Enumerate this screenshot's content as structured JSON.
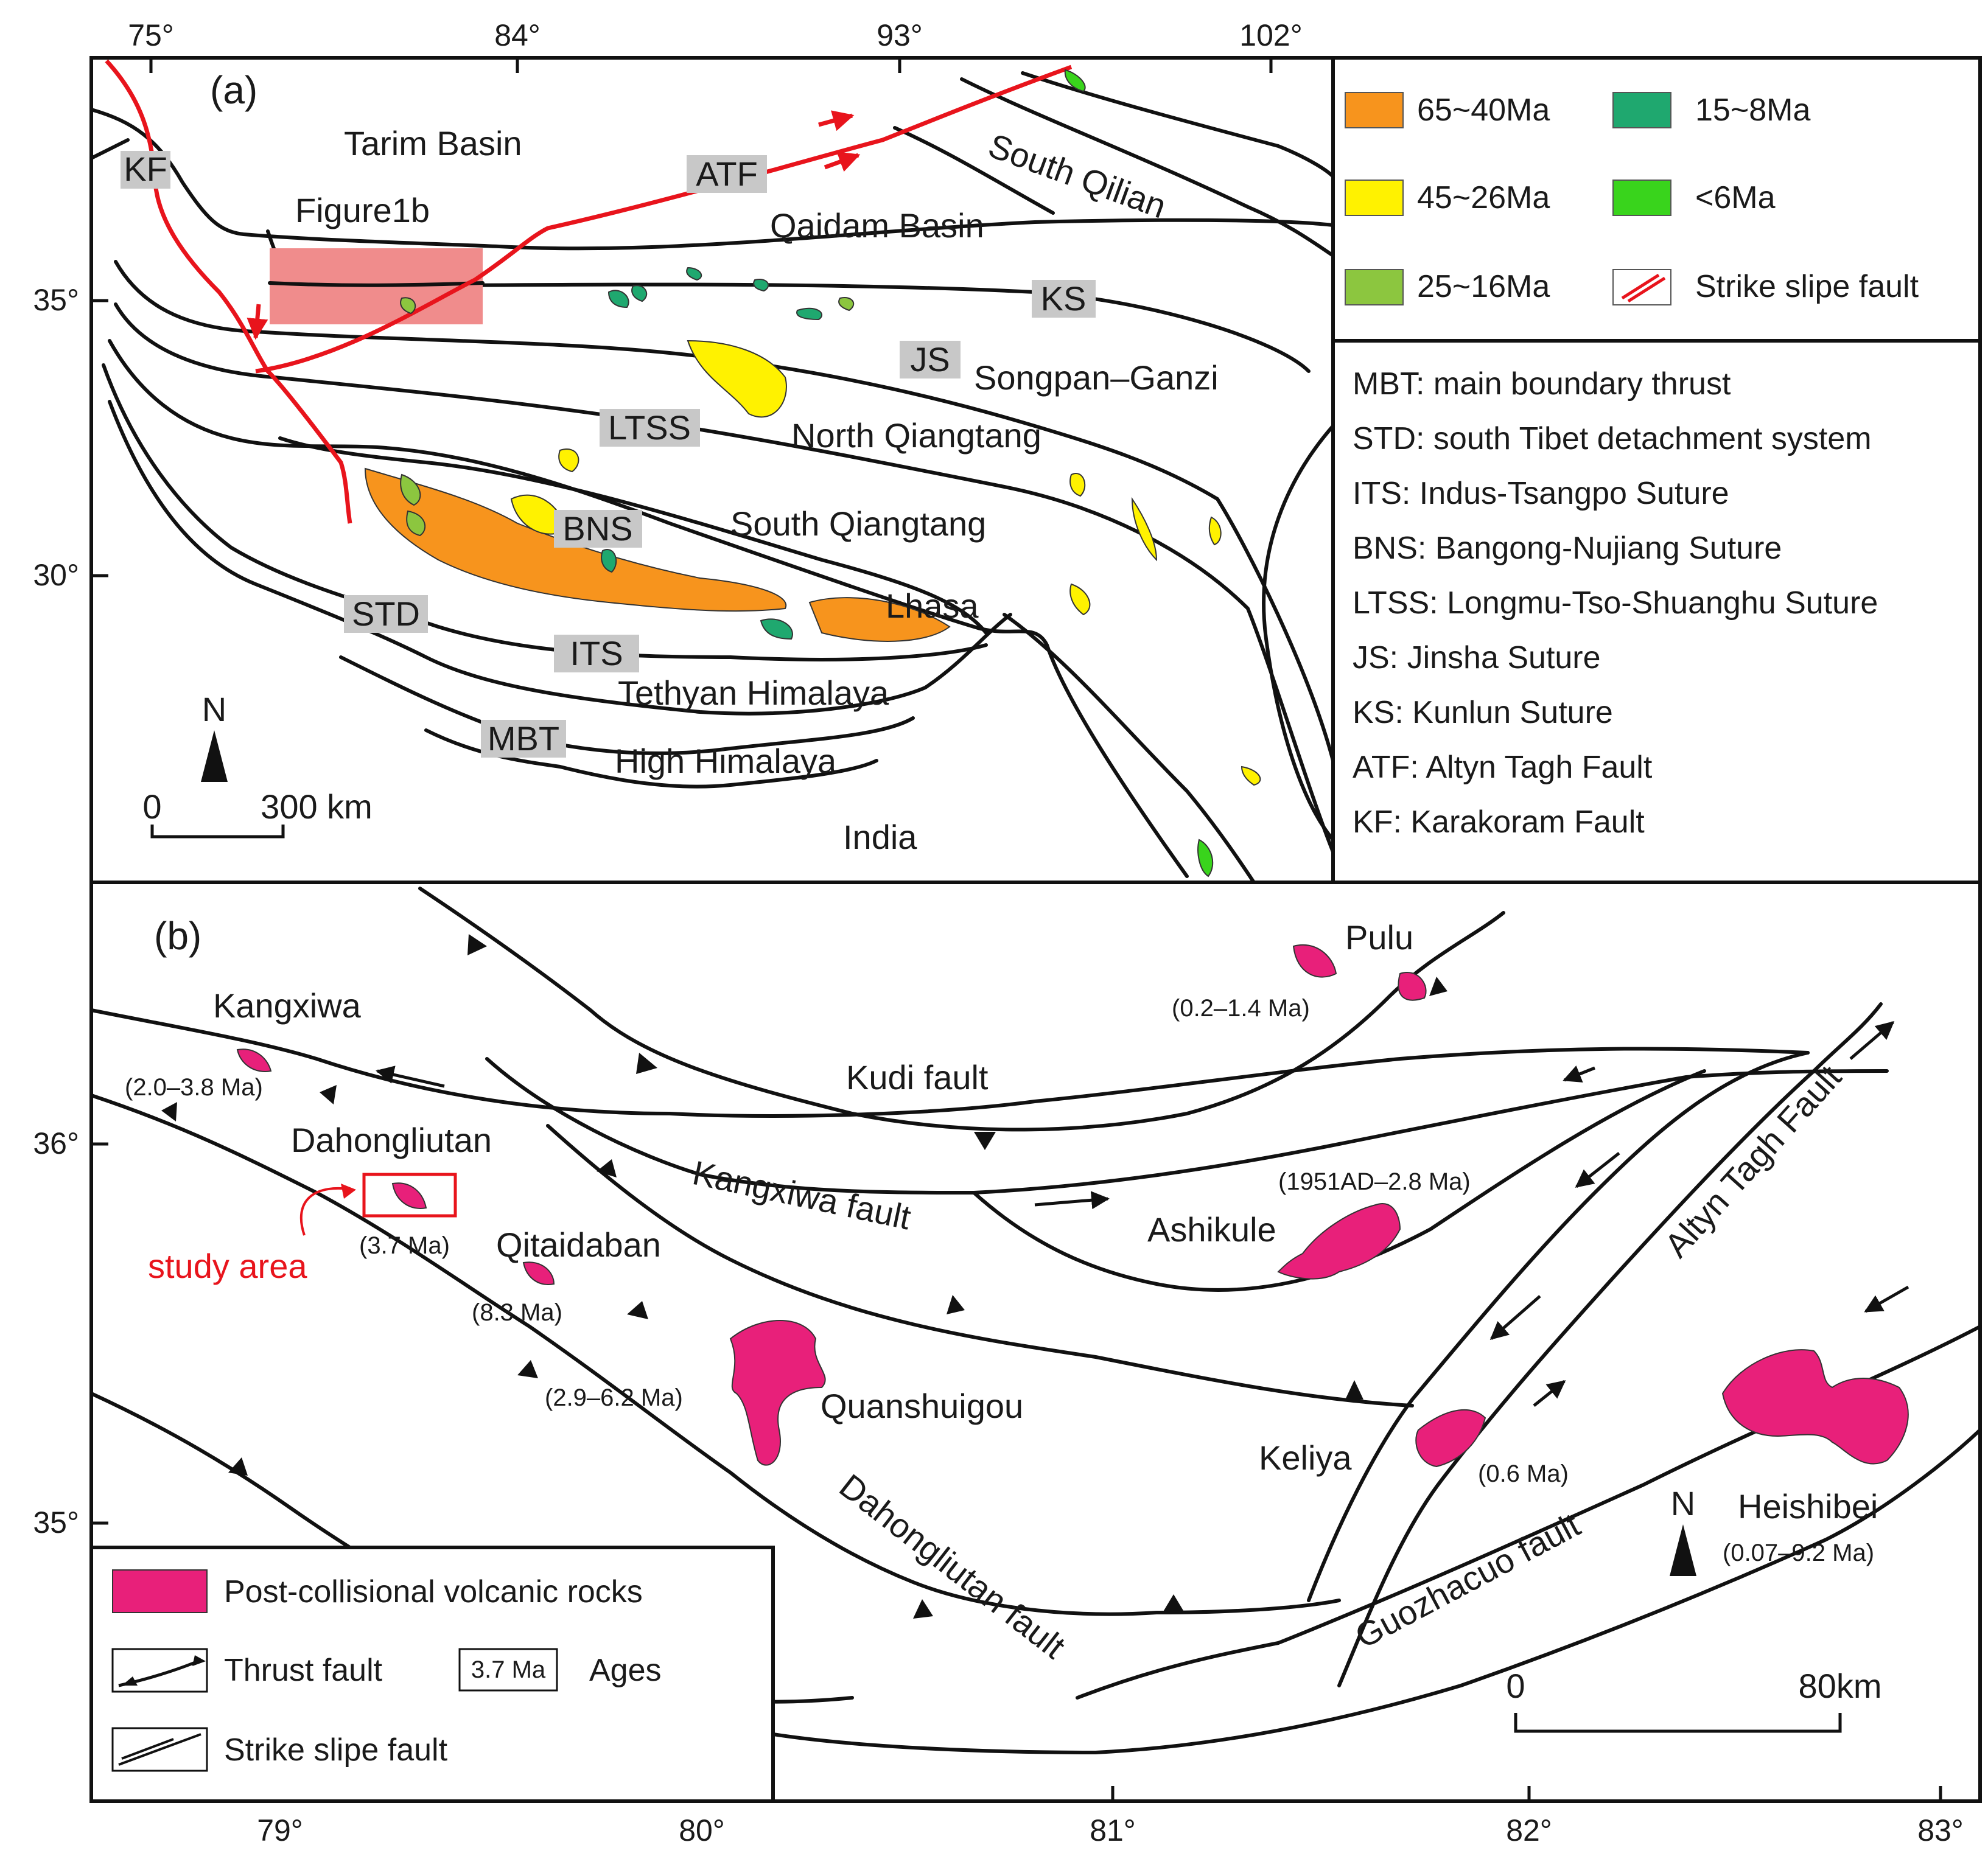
{
  "panel_a": {
    "label": "(a)",
    "lon_ticks": [
      "75°",
      "84°",
      "93°",
      "102°"
    ],
    "lat_ticks": [
      "35°",
      "30°"
    ],
    "places": {
      "tarim": "Tarim Basin",
      "qaidam": "Qaidam Basin",
      "south_qilian": "South Qilian",
      "songpan": "Songpan–Ganzi",
      "north_qiangtang": "North Qiangtang",
      "south_qiangtang": "South Qiangtang",
      "lhasa": "Lhasa",
      "tethyan": "Tethyan Himalaya",
      "high_himalaya": "High Himalaya",
      "india": "India",
      "figure1b": "Figure1b"
    },
    "badges": {
      "kf": "KF",
      "atf": "ATF",
      "ks": "KS",
      "js": "JS",
      "ltss": "LTSS",
      "bns": "BNS",
      "std": "STD",
      "its": "ITS",
      "mbt": "MBT"
    },
    "north": "N",
    "scale": {
      "zero": "0",
      "label": "300 km"
    },
    "legend_ages": [
      {
        "label": "65~40Ma",
        "color": "#f7941d"
      },
      {
        "label": "15~8Ma",
        "color": "#1fa86f"
      },
      {
        "label": "45~26Ma",
        "color": "#fff200"
      },
      {
        "label": "<6Ma",
        "color": "#39d41c"
      },
      {
        "label": "25~16Ma",
        "color": "#8cc63f"
      },
      {
        "label": "Strike slipe fault",
        "color": "#e8141c"
      }
    ],
    "abbreviations": [
      "MBT: main boundary thrust",
      "STD: south Tibet detachment system",
      "ITS: Indus-Tsangpo Suture",
      "BNS: Bangong-Nujiang Suture",
      "LTSS: Longmu-Tso-Shuanghu Suture",
      "JS: Jinsha Suture",
      "KS: Kunlun Suture",
      "ATF: Altyn Tagh Fault",
      "KF: Karakoram Fault"
    ]
  },
  "panel_b": {
    "label": "(b)",
    "lon_ticks": [
      "79°",
      "80°",
      "81°",
      "82°",
      "83°"
    ],
    "lat_ticks": [
      "36°",
      "35°"
    ],
    "volcanic_color": "#e8207a",
    "faults": {
      "kudi": "Kudi fault",
      "kangxiwa": "Kangxiwa fault",
      "altyn": "Altyn Tagh Fault",
      "dahongliutan": "Dahongliutan fault",
      "guozhacuo": "Guozhacuo fault"
    },
    "sites": [
      {
        "name": "Kangxiwa",
        "age": "(2.0–3.8 Ma)"
      },
      {
        "name": "Pulu",
        "age": "(0.2–1.4 Ma)"
      },
      {
        "name": "Dahongliutan",
        "age": "(3.7 Ma)"
      },
      {
        "name": "Qitaidaban",
        "age": "(8.3 Ma)"
      },
      {
        "name": "Quanshuigou",
        "age": "(2.9–6.2 Ma)"
      },
      {
        "name": "Ashikule",
        "age": "(1951AD–2.8 Ma)"
      },
      {
        "name": "Keliya",
        "age": "(0.6 Ma)"
      },
      {
        "name": "Heishibei",
        "age": "(0.07–9.2 Ma)"
      }
    ],
    "study_area": "study area",
    "north": "N",
    "scale": {
      "zero": "0",
      "label": "80km"
    },
    "legend": {
      "volcanic": "Post-collisional volcanic rocks",
      "thrust": "Thrust fault",
      "age_sample": "3.7 Ma",
      "ages": "Ages",
      "strike": "Strike slipe fault"
    }
  }
}
